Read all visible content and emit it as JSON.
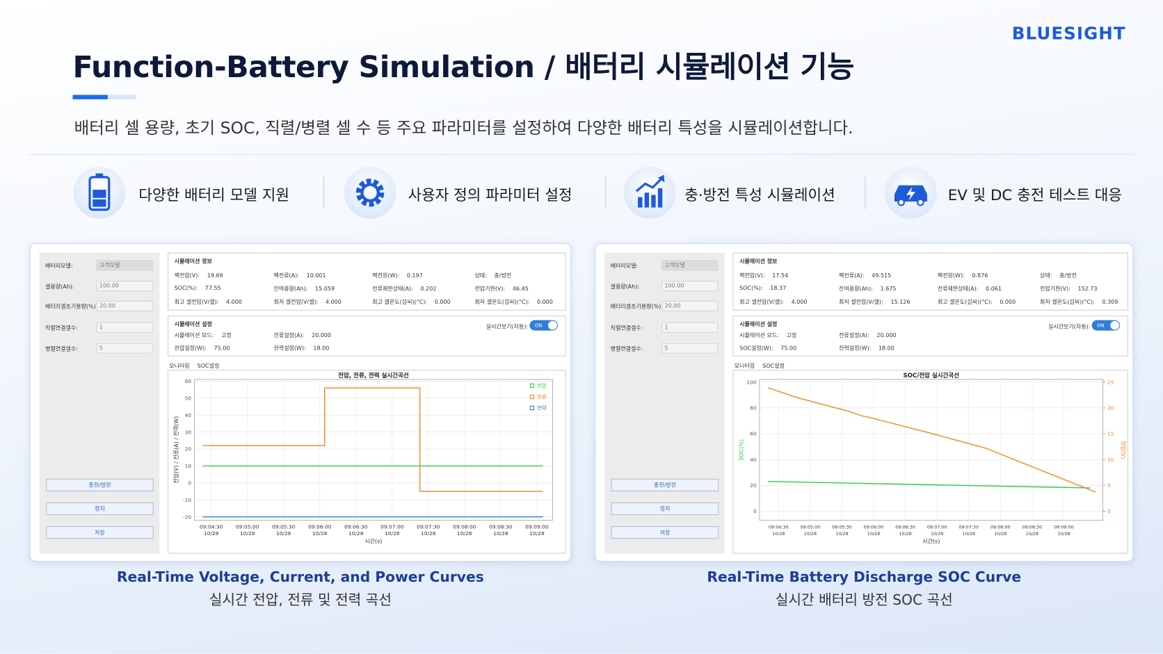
{
  "brand": "BLUESIGHT",
  "header": {
    "title": "Function-Battery Simulation / 배터리 시뮬레이션 기능",
    "subtitle": "배터리 셀 용량, 초기 SOC, 직렬/병렬 셀 수 등 주요 파라미터를 설정하여 다양한 배터리 특성을 시뮬레이션합니다."
  },
  "features": [
    "다양한 배터리 모델 지원",
    "사용자 정의 파라미터 설정",
    "충·방전 특성 시뮬레이션",
    "EV 및 DC 충전 테스트 대응"
  ],
  "panels": [
    {
      "sidebar": {
        "fields": [
          {
            "label": "배터리모델:",
            "value": "고객모델"
          },
          {
            "label": "셀용량(Ah):",
            "value": "100.00"
          },
          {
            "label": "배터리셀초기용량(%):",
            "value": "20.00"
          },
          {
            "label": "직렬연결셀수:",
            "value": "1"
          },
          {
            "label": "병렬연결셀수:",
            "value": "5"
          }
        ],
        "buttons": [
          "충전/방전",
          "정지",
          "저장"
        ]
      },
      "info": {
        "title": "시뮬레이션 정보",
        "rows": [
          [
            {
              "label": "팩전압(V):",
              "value": "19.69"
            },
            {
              "label": "팩전류(A):",
              "value": "10.001"
            },
            {
              "label": "팩전원(W):",
              "value": "0.197"
            },
            {
              "label": "상태:",
              "value": "충/방전"
            }
          ],
          [
            {
              "label": "SOC(%):",
              "value": "77.55"
            },
            {
              "label": "잔여용량(Ah):",
              "value": "15.059"
            },
            {
              "label": "전류제한상태(A):",
              "value": "0.202"
            },
            {
              "label": "전압기한(V):",
              "value": "46.45"
            }
          ],
          [
            {
              "label": "최고 셀전압(V/셀):",
              "value": "4.000"
            },
            {
              "label": "최저 셀전압(V/셀):",
              "value": "4.000"
            },
            {
              "label": "최고 셀온도(섭씨)(°C):",
              "value": "0.000"
            },
            {
              "label": "최저 셀온도(섭씨)(°C):",
              "value": "0.000"
            }
          ]
        ]
      },
      "settings": {
        "title": "시뮬레이션 설정",
        "toggle_label": "실시간보기(자동):",
        "toggle": "ON",
        "rows": [
          [
            {
              "label": "시뮬레이션 모드:",
              "value": "고정"
            },
            {
              "label": "전류설정(A):",
              "value": "20.000"
            }
          ],
          [
            {
              "label": "전압설정(W):",
              "value": "75.00"
            },
            {
              "label": "전력설정(W):",
              "value": "18.00"
            }
          ]
        ]
      },
      "tabs": [
        "모니터링",
        "SOC설정"
      ],
      "chart": {
        "type": "line",
        "title": "전압, 전류, 전력 실시간곡선",
        "ylabel": "전압(V) / 전류(A) / 전력(W)",
        "xlabel": "시간(s)",
        "xlim": [
          "09:04:16",
          "09:09:13"
        ],
        "xticks": [
          "09:04:30",
          "09:05:00",
          "09:05:30",
          "09:06:00",
          "09:06:30",
          "09:07:00",
          "09:07:30",
          "09:08:00",
          "09:08:30",
          "09:09:00"
        ],
        "xtick_date": "10/28",
        "ylim": [
          -22,
          61
        ],
        "yticks": [
          -20,
          -10,
          0,
          10,
          20,
          30,
          40,
          50,
          60
        ],
        "grid": true,
        "legend": "upper right",
        "series": [
          {
            "name": "전압",
            "color": "#2ecc40",
            "x": [
              "09:04:23",
              "09:09:05"
            ],
            "values": [
              10,
              10
            ]
          },
          {
            "name": "전류",
            "color": "#f5841f",
            "x": [
              "09:04:23",
              "09:06:04",
              "09:06:04",
              "09:07:23",
              "09:07:23",
              "09:09:05"
            ],
            "values": [
              22,
              22,
              56,
              56,
              -5,
              -5
            ]
          },
          {
            "name": "전력",
            "color": "#2f7ed8",
            "x": [
              "09:04:23",
              "09:09:05"
            ],
            "values": [
              -20,
              -20
            ]
          }
        ]
      },
      "caption": {
        "title": "Real-Time Voltage, Current, and Power Curves",
        "subtitle": "실시간 전압, 전류 및 전력 곡선"
      }
    },
    {
      "sidebar": {
        "fields": [
          {
            "label": "배터리모델:",
            "value": "고객모델"
          },
          {
            "label": "셀용량(Ah):",
            "value": "100.00"
          },
          {
            "label": "배터리셀초기용량(%):",
            "value": "20.00"
          },
          {
            "label": "직렬연결셀수:",
            "value": "1"
          },
          {
            "label": "병렬연결셀수:",
            "value": "5"
          }
        ],
        "buttons": [
          "충전/방전",
          "정지",
          "저장"
        ]
      },
      "info": {
        "title": "시뮬레이션 정보",
        "rows": [
          [
            {
              "label": "팩전압(V):",
              "value": "17.54"
            },
            {
              "label": "팩전류(A):",
              "value": "49.515"
            },
            {
              "label": "팩전원(W):",
              "value": "0.876"
            },
            {
              "label": "상태:",
              "value": "충/방전"
            }
          ],
          [
            {
              "label": "SOC(%):",
              "value": "18.37"
            },
            {
              "label": "잔여용량(Ah):",
              "value": "1.675"
            },
            {
              "label": "전류제한상태(A):",
              "value": "0.061"
            },
            {
              "label": "전압기한(V):",
              "value": "152.73"
            }
          ],
          [
            {
              "label": "최고 셀전압(V/셀):",
              "value": "4.000"
            },
            {
              "label": "최저 셀전압(V/셀):",
              "value": "15.126"
            },
            {
              "label": "최고 셀온도(섭씨)(°C):",
              "value": "0.000"
            },
            {
              "label": "최저 셀온도(섭씨)(°C):",
              "value": "0.309"
            }
          ]
        ]
      },
      "settings": {
        "title": "시뮬레이션 설정",
        "toggle_label": "실시간보기(자동):",
        "toggle": "ON",
        "rows": [
          [
            {
              "label": "시뮬레이션 모드:",
              "value": "고정"
            },
            {
              "label": "전류설정(A):",
              "value": "20.000"
            }
          ],
          [
            {
              "label": "SOC설정(W):",
              "value": "75.00"
            },
            {
              "label": "전력설정(W):",
              "value": "18.00"
            }
          ]
        ]
      },
      "tabs": [
        "모니터링",
        "SOC설정"
      ],
      "chart": {
        "type": "line",
        "title": "SOC/전압 실시간곡선",
        "ylabel": "SOC(%)",
        "y2label": "전압(V)",
        "xlabel": "시간(s)",
        "xlim": [
          "09:04:12",
          "09:09:37"
        ],
        "xticks": [
          "09:04:30",
          "09:05:00",
          "09:05:30",
          "09:06:00",
          "09:06:30",
          "09:07:00",
          "09:07:30",
          "09:08:00",
          "09:08:30",
          "09:09:00"
        ],
        "xtick_date": "10/28",
        "ylim": [
          -7,
          102
        ],
        "yticks": [
          0,
          20,
          40,
          60,
          80,
          100
        ],
        "y2lim": [
          -1.75,
          25.5
        ],
        "y2ticks": [
          0,
          5,
          10,
          15,
          20,
          25
        ],
        "grid": true,
        "series": [
          {
            "color": "#2ecc40",
            "x": [
              "09:04:20",
              "09:09:25"
            ],
            "values": [
              23,
              18
            ]
          },
          {
            "color": "#f5841f",
            "axis": "y2",
            "x": [
              "09:04:20",
              "09:04:49",
              "09:05:37",
              "09:05:48",
              "09:05:55",
              "09:06:54",
              "09:07:46",
              "09:09:30"
            ],
            "values": [
              23.9,
              21.9,
              19.3,
              18.5,
              18.2,
              15.1,
              12.2,
              3.7
            ]
          }
        ]
      },
      "caption": {
        "title": "Real-Time Battery Discharge SOC Curve",
        "subtitle": "실시간 배터리 방전 SOC 곡선"
      }
    }
  ]
}
